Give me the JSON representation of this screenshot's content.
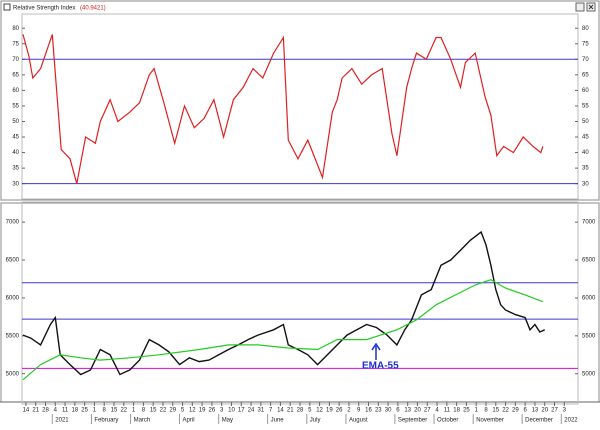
{
  "chart_data": [
    {
      "type": "line",
      "title": "Relative Strength Index",
      "subtitle": "(40.9421)",
      "xlim": [
        -0.4,
        56.4
      ],
      "ylim": [
        27,
        82
      ],
      "yticks": [
        30,
        35,
        40,
        45,
        50,
        55,
        60,
        65,
        70,
        75,
        80
      ],
      "hlines": [
        {
          "value": 70,
          "color": "#3a3acf"
        },
        {
          "value": 30,
          "color": "#3a3acf"
        }
      ],
      "series": [
        {
          "color": "#e02020",
          "x": [
            -0.3,
            0.3,
            0.7,
            1.5,
            2.7,
            3.6,
            4.5,
            5.2,
            6.1,
            7.1,
            7.6,
            8.6,
            9.4,
            10.6,
            11.6,
            12.6,
            13.1,
            14.1,
            15.2,
            16.2,
            17.2,
            18.2,
            19.2,
            20.2,
            21.2,
            22.2,
            23.2,
            24.2,
            25.3,
            26.3,
            26.8,
            27.8,
            28.8,
            29.8,
            30.3,
            31.3,
            31.8,
            32.3,
            33.3,
            34.3,
            35.3,
            36.4,
            37.4,
            37.9,
            38.9,
            39.4,
            39.9,
            40.9,
            41.9,
            42.4,
            43.4,
            44.4,
            44.9,
            45.9,
            46.9,
            47.5,
            48.1,
            48.8,
            49.8,
            50.8,
            51.8,
            52.6,
            52.8
          ],
          "values": [
            78,
            71,
            64,
            67,
            78,
            41,
            38,
            30,
            45,
            43,
            50,
            57,
            50,
            53,
            56,
            65,
            67,
            56,
            43,
            55,
            48,
            51,
            57,
            45,
            57,
            61,
            67,
            64,
            72,
            77,
            44,
            38,
            44,
            36,
            32,
            53,
            57,
            64,
            67,
            62,
            65,
            67,
            46,
            39,
            61,
            67,
            72,
            70,
            77,
            77,
            70,
            61,
            69,
            72,
            58,
            52,
            39,
            42,
            40,
            45,
            42,
            40,
            42
          ]
        }
      ]
    },
    {
      "type": "line",
      "xlim": [
        -0.4,
        56.4
      ],
      "ylim": [
        4680,
        7160
      ],
      "yticks": [
        5000,
        5500,
        6000,
        6500,
        7000
      ],
      "hlines": [
        {
          "value": 6200,
          "color": "#3a3acf"
        },
        {
          "value": 5720,
          "color": "#3a3acf"
        },
        {
          "value": 5070,
          "color": "#e000e0"
        }
      ],
      "series": [
        {
          "color": "#111111",
          "x": [
            -0.3,
            0.5,
            1.5,
            2.5,
            3.0,
            3.5,
            4.5,
            5.6,
            6.6,
            7.6,
            8.6,
            9.6,
            10.6,
            11.6,
            12.6,
            13.6,
            14.6,
            15.7,
            16.7,
            17.7,
            18.7,
            19.7,
            20.7,
            21.7,
            22.7,
            23.7,
            25.3,
            26.3,
            26.8,
            27.8,
            28.8,
            29.8,
            30.8,
            31.8,
            32.8,
            33.8,
            34.8,
            35.8,
            36.9,
            37.9,
            38.7,
            39.4,
            40.4,
            41.4,
            42.4,
            43.4,
            44.4,
            45.4,
            46.5,
            47.0,
            47.5,
            48.0,
            48.5,
            49.0,
            50.0,
            51.0,
            51.5,
            52.0,
            52.5,
            53.0
          ],
          "values": [
            5510,
            5470,
            5380,
            5650,
            5740,
            5250,
            5120,
            4990,
            5050,
            5320,
            5250,
            4990,
            5050,
            5180,
            5450,
            5380,
            5290,
            5120,
            5210,
            5160,
            5180,
            5250,
            5320,
            5380,
            5450,
            5510,
            5580,
            5650,
            5380,
            5320,
            5250,
            5120,
            5250,
            5380,
            5510,
            5580,
            5650,
            5610,
            5510,
            5380,
            5580,
            5710,
            6040,
            6110,
            6430,
            6500,
            6630,
            6760,
            6870,
            6700,
            6430,
            6110,
            5910,
            5840,
            5780,
            5740,
            5580,
            5650,
            5550,
            5580
          ]
        },
        {
          "name": "EMA-55",
          "color": "#22cc22",
          "x": [
            -0.3,
            1.5,
            3.5,
            5.6,
            7.6,
            10.6,
            13.6,
            17.7,
            20.7,
            23.7,
            26.8,
            29.8,
            31.8,
            34.8,
            37.9,
            39.9,
            41.9,
            43.9,
            45.9,
            47.5,
            49.0,
            51.0,
            52.8
          ],
          "values": [
            4920,
            5120,
            5250,
            5210,
            5180,
            5210,
            5250,
            5320,
            5380,
            5380,
            5340,
            5320,
            5450,
            5450,
            5580,
            5710,
            5910,
            6040,
            6170,
            6240,
            6130,
            6040,
            5950
          ]
        }
      ],
      "xticks": [
        {
          "value": 0,
          "label": "14"
        },
        {
          "value": 1,
          "label": "21"
        },
        {
          "value": 2,
          "label": "28"
        },
        {
          "value": 3,
          "label": "4"
        },
        {
          "value": 4,
          "label": "11"
        },
        {
          "value": 5,
          "label": "18"
        },
        {
          "value": 6,
          "label": "25"
        },
        {
          "value": 7,
          "label": "1"
        },
        {
          "value": 8,
          "label": "8"
        },
        {
          "value": 9,
          "label": "15"
        },
        {
          "value": 10,
          "label": "22"
        },
        {
          "value": 11,
          "label": "1"
        },
        {
          "value": 12,
          "label": "8"
        },
        {
          "value": 13,
          "label": "15"
        },
        {
          "value": 14,
          "label": "22"
        },
        {
          "value": 15,
          "label": "29"
        },
        {
          "value": 16,
          "label": "5"
        },
        {
          "value": 17,
          "label": "12"
        },
        {
          "value": 18,
          "label": "19"
        },
        {
          "value": 19,
          "label": "26"
        },
        {
          "value": 20,
          "label": "3"
        },
        {
          "value": 21,
          "label": "10"
        },
        {
          "value": 22,
          "label": "17"
        },
        {
          "value": 23,
          "label": "24"
        },
        {
          "value": 24,
          "label": "31"
        },
        {
          "value": 25,
          "label": "7"
        },
        {
          "value": 26,
          "label": "14"
        },
        {
          "value": 27,
          "label": "21"
        },
        {
          "value": 28,
          "label": "28"
        },
        {
          "value": 29,
          "label": "5"
        },
        {
          "value": 30,
          "label": "12"
        },
        {
          "value": 31,
          "label": "19"
        },
        {
          "value": 32,
          "label": "26"
        },
        {
          "value": 33,
          "label": "2"
        },
        {
          "value": 34,
          "label": "9"
        },
        {
          "value": 35,
          "label": "16"
        },
        {
          "value": 36,
          "label": "23"
        },
        {
          "value": 37,
          "label": "30"
        },
        {
          "value": 38,
          "label": "6"
        },
        {
          "value": 39,
          "label": "13"
        },
        {
          "value": 40,
          "label": "20"
        },
        {
          "value": 41,
          "label": "27"
        },
        {
          "value": 42,
          "label": "4"
        },
        {
          "value": 43,
          "label": "11"
        },
        {
          "value": 44,
          "label": "18"
        },
        {
          "value": 45,
          "label": "25"
        },
        {
          "value": 46,
          "label": "1"
        },
        {
          "value": 47,
          "label": "8"
        },
        {
          "value": 48,
          "label": "15"
        },
        {
          "value": 49,
          "label": "22"
        },
        {
          "value": 50,
          "label": "29"
        },
        {
          "value": 51,
          "label": "6"
        },
        {
          "value": 52,
          "label": "13"
        },
        {
          "value": 53,
          "label": "20"
        },
        {
          "value": 54,
          "label": "27"
        },
        {
          "value": 55,
          "label": "3"
        }
      ],
      "month_labels": [
        {
          "value": 3,
          "label": "2021"
        },
        {
          "value": 7,
          "label": "February"
        },
        {
          "value": 11,
          "label": "March"
        },
        {
          "value": 16,
          "label": "April"
        },
        {
          "value": 20,
          "label": "May"
        },
        {
          "value": 25,
          "label": "June"
        },
        {
          "value": 29,
          "label": "July"
        },
        {
          "value": 33,
          "label": "August"
        },
        {
          "value": 38,
          "label": "September"
        },
        {
          "value": 42,
          "label": "October"
        },
        {
          "value": 46,
          "label": "November"
        },
        {
          "value": 51,
          "label": "December"
        },
        {
          "value": 55,
          "label": "2022"
        }
      ]
    }
  ]
}
